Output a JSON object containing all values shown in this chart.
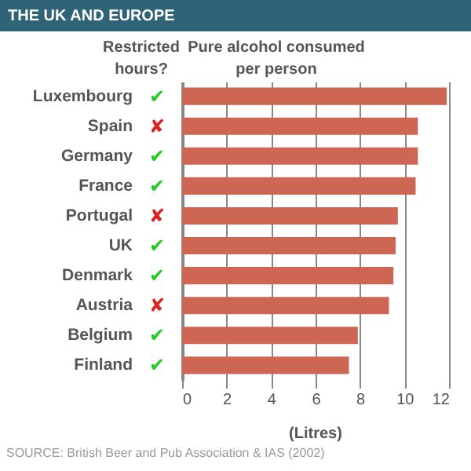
{
  "chart_data": {
    "type": "bar",
    "orientation": "horizontal",
    "title": "THE UK AND EUROPE",
    "subtitle": "Pure alcohol consumed per person",
    "xlabel": "(Litres)",
    "categories": [
      "Luxembourg",
      "Spain",
      "Germany",
      "France",
      "Portugal",
      "UK",
      "Denmark",
      "Austria",
      "Belgium",
      "Finland"
    ],
    "series": [
      {
        "color": "#cd6652",
        "values": [
          11.9,
          10.6,
          10.6,
          10.5,
          9.7,
          9.6,
          9.5,
          9.3,
          7.9,
          7.5
        ]
      }
    ],
    "xlim": [
      0,
      12
    ],
    "xticks": [
      0,
      2,
      4,
      6,
      8,
      10,
      12
    ],
    "grid": "x",
    "annotations": [
      "Restricted hours?",
      "✔",
      "✘",
      "✔",
      "✔",
      "✘",
      "✔",
      "✔",
      "✘",
      "✔",
      "✔",
      "SOURCE: British Beer and Pub Association & IAS (2002)"
    ]
  }
}
